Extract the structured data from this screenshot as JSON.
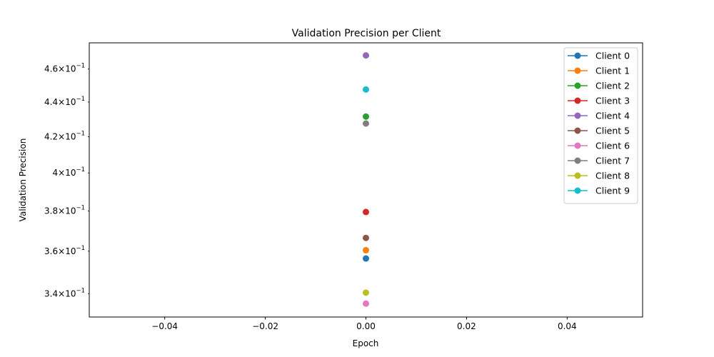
{
  "chart_data": {
    "type": "scatter",
    "title": "Validation Precision per Client",
    "xlabel": "Epoch",
    "ylabel": "Validation Precision",
    "xlim": [
      -0.055,
      0.055
    ],
    "ylim": [
      0.3295,
      0.4765
    ],
    "yscale": "log",
    "grid": false,
    "legend_position": "top-right",
    "x_ticks": [
      {
        "value": -0.04,
        "label": "−0.04"
      },
      {
        "value": -0.02,
        "label": "−0.02"
      },
      {
        "value": 0.0,
        "label": "0.00"
      },
      {
        "value": 0.02,
        "label": "0.02"
      },
      {
        "value": 0.04,
        "label": "0.04"
      }
    ],
    "y_ticks": [
      {
        "value": 0.34,
        "mantissa": "3.4",
        "exp": "−1"
      },
      {
        "value": 0.36,
        "mantissa": "3.6",
        "exp": "−1"
      },
      {
        "value": 0.38,
        "mantissa": "3.8",
        "exp": "−1"
      },
      {
        "value": 0.4,
        "mantissa": "4",
        "exp": "−1"
      },
      {
        "value": 0.42,
        "mantissa": "4.2",
        "exp": "−1"
      },
      {
        "value": 0.44,
        "mantissa": "4.4",
        "exp": "−1"
      },
      {
        "value": 0.46,
        "mantissa": "4.6",
        "exp": "−1"
      }
    ],
    "series": [
      {
        "name": "Client 0",
        "color": "#1f77b4",
        "x": [
          0
        ],
        "values": [
          0.3565
        ]
      },
      {
        "name": "Client 1",
        "color": "#ff7f0e",
        "x": [
          0
        ],
        "values": [
          0.3605
        ]
      },
      {
        "name": "Client 2",
        "color": "#2ca02c",
        "x": [
          0
        ],
        "values": [
          0.4315
        ]
      },
      {
        "name": "Client 3",
        "color": "#d62728",
        "x": [
          0
        ],
        "values": [
          0.3795
        ]
      },
      {
        "name": "Client 4",
        "color": "#9467bd",
        "x": [
          0
        ],
        "values": [
          0.4685
        ]
      },
      {
        "name": "Client 5",
        "color": "#8c564b",
        "x": [
          0
        ],
        "values": [
          0.3665
        ]
      },
      {
        "name": "Client 6",
        "color": "#e377c2",
        "x": [
          0
        ],
        "values": [
          0.3355
        ]
      },
      {
        "name": "Client 7",
        "color": "#7f7f7f",
        "x": [
          0
        ],
        "values": [
          0.4275
        ]
      },
      {
        "name": "Client 8",
        "color": "#bcbd22",
        "x": [
          0
        ],
        "values": [
          0.3405
        ]
      },
      {
        "name": "Client 9",
        "color": "#17becf",
        "x": [
          0
        ],
        "values": [
          0.4475
        ]
      }
    ]
  }
}
